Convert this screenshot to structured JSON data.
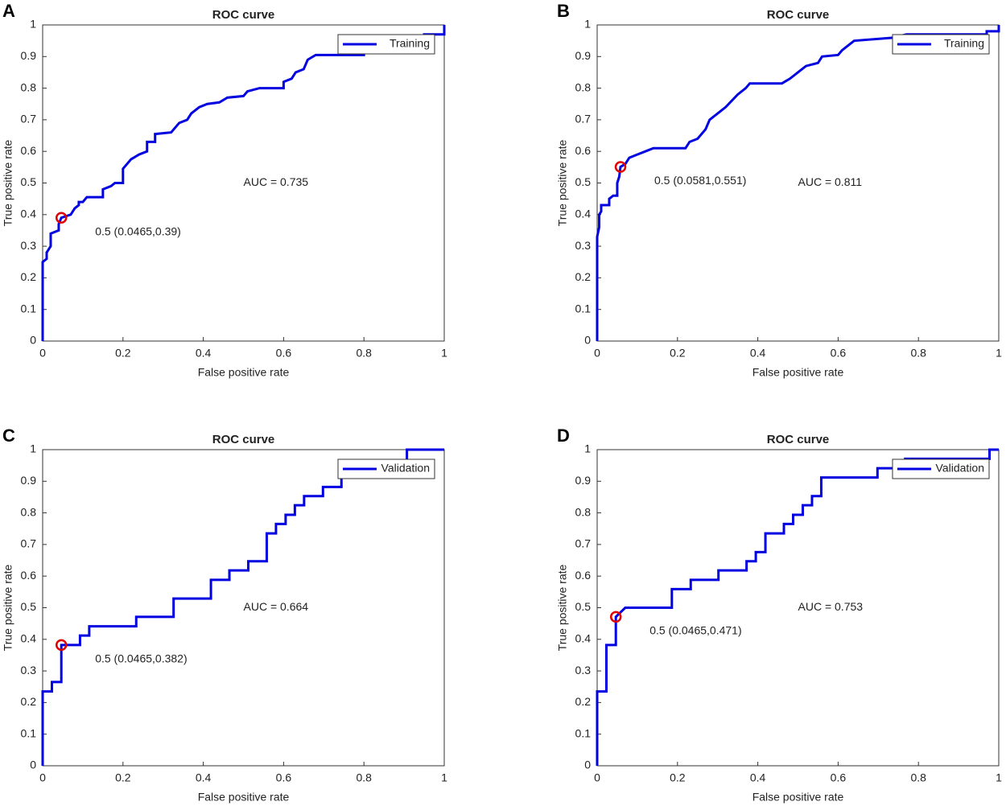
{
  "chart_data": [
    {
      "type": "line",
      "panel": "A",
      "title": "ROC curve",
      "xlabel": "False positive rate",
      "ylabel": "True positive rate",
      "xlim": [
        0,
        1
      ],
      "ylim": [
        0,
        1
      ],
      "xticks": [
        0,
        0.2,
        0.4,
        0.6,
        0.8,
        1
      ],
      "yticks": [
        0,
        0.1,
        0.2,
        0.3,
        0.4,
        0.5,
        0.6,
        0.7,
        0.8,
        0.9,
        1
      ],
      "legend": "upper right",
      "series": [
        {
          "name": "Training",
          "color": "#0000e0",
          "x": [
            0,
            0,
            0.01,
            0.01,
            0.02,
            0.02,
            0.04,
            0.04,
            0.0465,
            0.07,
            0.08,
            0.09,
            0.09,
            0.1,
            0.11,
            0.15,
            0.15,
            0.17,
            0.18,
            0.2,
            0.2,
            0.21,
            0.22,
            0.24,
            0.26,
            0.26,
            0.28,
            0.28,
            0.32,
            0.34,
            0.36,
            0.37,
            0.39,
            0.41,
            0.44,
            0.46,
            0.5,
            0.51,
            0.54,
            0.6,
            0.6,
            0.62,
            0.63,
            0.65,
            0.66,
            0.68,
            0.8,
            0.8,
            0.95,
            0.95,
            1,
            1
          ],
          "values": [
            0,
            0.25,
            0.26,
            0.28,
            0.3,
            0.34,
            0.35,
            0.37,
            0.39,
            0.4,
            0.42,
            0.43,
            0.44,
            0.44,
            0.455,
            0.455,
            0.48,
            0.49,
            0.5,
            0.5,
            0.545,
            0.56,
            0.575,
            0.59,
            0.6,
            0.63,
            0.63,
            0.655,
            0.66,
            0.69,
            0.7,
            0.72,
            0.74,
            0.75,
            0.755,
            0.77,
            0.775,
            0.79,
            0.8,
            0.8,
            0.82,
            0.83,
            0.85,
            0.86,
            0.89,
            0.905,
            0.905,
            0.915,
            0.96,
            0.97,
            0.97,
            1
          ]
        }
      ],
      "operating_point": {
        "x": 0.0465,
        "y": 0.39,
        "color": "#e00000"
      },
      "operating_label": "0.5 (0.0465,0.39)",
      "auc_label": "AUC = 0.735"
    },
    {
      "type": "line",
      "panel": "B",
      "title": "ROC curve",
      "xlabel": "False positive rate",
      "ylabel": "True positive rate",
      "xlim": [
        0,
        1
      ],
      "ylim": [
        0,
        1
      ],
      "xticks": [
        0,
        0.2,
        0.4,
        0.6,
        0.8,
        1
      ],
      "yticks": [
        0,
        0.1,
        0.2,
        0.3,
        0.4,
        0.5,
        0.6,
        0.7,
        0.8,
        0.9,
        1
      ],
      "legend": "upper right",
      "series": [
        {
          "name": "Training",
          "color": "#0000e0",
          "x": [
            0,
            0,
            0.005,
            0.005,
            0.01,
            0.01,
            0.03,
            0.03,
            0.04,
            0.05,
            0.05,
            0.055,
            0.0581,
            0.07,
            0.08,
            0.1,
            0.12,
            0.14,
            0.22,
            0.23,
            0.25,
            0.27,
            0.28,
            0.3,
            0.32,
            0.35,
            0.37,
            0.38,
            0.46,
            0.48,
            0.49,
            0.5,
            0.52,
            0.55,
            0.56,
            0.6,
            0.61,
            0.63,
            0.64,
            0.74,
            0.77,
            0.97,
            0.97,
            1,
            1
          ],
          "values": [
            0,
            0.33,
            0.36,
            0.4,
            0.41,
            0.43,
            0.43,
            0.45,
            0.46,
            0.46,
            0.5,
            0.52,
            0.551,
            0.56,
            0.58,
            0.59,
            0.6,
            0.61,
            0.61,
            0.63,
            0.64,
            0.67,
            0.7,
            0.72,
            0.74,
            0.78,
            0.8,
            0.815,
            0.815,
            0.83,
            0.84,
            0.85,
            0.87,
            0.88,
            0.9,
            0.905,
            0.92,
            0.94,
            0.95,
            0.96,
            0.97,
            0.97,
            0.98,
            0.98,
            1
          ]
        }
      ],
      "operating_point": {
        "x": 0.0581,
        "y": 0.551,
        "color": "#e00000"
      },
      "operating_label": "0.5 (0.0581,0.551)",
      "auc_label": "AUC = 0.811"
    },
    {
      "type": "line",
      "panel": "C",
      "title": "ROC curve",
      "xlabel": "False positive rate",
      "ylabel": "True positive rate",
      "xlim": [
        0,
        1
      ],
      "ylim": [
        0,
        1
      ],
      "xticks": [
        0,
        0.2,
        0.4,
        0.6,
        0.8,
        1
      ],
      "yticks": [
        0,
        0.1,
        0.2,
        0.3,
        0.4,
        0.5,
        0.6,
        0.7,
        0.8,
        0.9,
        1
      ],
      "legend": "upper right",
      "series": [
        {
          "name": "Validation",
          "color": "#0000e0",
          "x": [
            0,
            0,
            0.023,
            0.023,
            0.0465,
            0.0465,
            0.093,
            0.093,
            0.116,
            0.116,
            0.233,
            0.233,
            0.326,
            0.326,
            0.419,
            0.419,
            0.465,
            0.465,
            0.512,
            0.512,
            0.558,
            0.558,
            0.581,
            0.581,
            0.605,
            0.605,
            0.628,
            0.628,
            0.651,
            0.651,
            0.698,
            0.698,
            0.744,
            0.744,
            0.907,
            0.907,
            1
          ],
          "values": [
            0,
            0.235,
            0.235,
            0.265,
            0.265,
            0.382,
            0.382,
            0.412,
            0.412,
            0.441,
            0.441,
            0.471,
            0.471,
            0.529,
            0.529,
            0.588,
            0.588,
            0.618,
            0.618,
            0.647,
            0.647,
            0.735,
            0.735,
            0.765,
            0.765,
            0.794,
            0.794,
            0.824,
            0.824,
            0.853,
            0.853,
            0.882,
            0.882,
            0.912,
            0.912,
            1,
            1
          ]
        }
      ],
      "operating_point": {
        "x": 0.0465,
        "y": 0.382,
        "color": "#e00000"
      },
      "operating_label": "0.5 (0.0465,0.382)",
      "auc_label": "AUC = 0.664"
    },
    {
      "type": "line",
      "panel": "D",
      "title": "ROC curve",
      "xlabel": "False positive rate",
      "ylabel": "True positive rate",
      "xlim": [
        0,
        1
      ],
      "ylim": [
        0,
        1
      ],
      "xticks": [
        0,
        0.2,
        0.4,
        0.6,
        0.8,
        1
      ],
      "yticks": [
        0,
        0.1,
        0.2,
        0.3,
        0.4,
        0.5,
        0.6,
        0.7,
        0.8,
        0.9,
        1
      ],
      "legend": "upper right",
      "series": [
        {
          "name": "Validation",
          "color": "#0000e0",
          "x": [
            0,
            0,
            0.023,
            0.023,
            0.0465,
            0.0465,
            0.07,
            0.186,
            0.186,
            0.233,
            0.233,
            0.302,
            0.302,
            0.372,
            0.372,
            0.395,
            0.395,
            0.419,
            0.419,
            0.465,
            0.465,
            0.488,
            0.488,
            0.512,
            0.512,
            0.535,
            0.535,
            0.558,
            0.558,
            0.698,
            0.698,
            0.767,
            0.767,
            0.977,
            0.977,
            1
          ],
          "values": [
            0,
            0.235,
            0.235,
            0.382,
            0.382,
            0.471,
            0.5,
            0.5,
            0.559,
            0.559,
            0.588,
            0.588,
            0.618,
            0.618,
            0.647,
            0.647,
            0.676,
            0.676,
            0.735,
            0.735,
            0.765,
            0.765,
            0.794,
            0.794,
            0.824,
            0.824,
            0.853,
            0.853,
            0.912,
            0.912,
            0.941,
            0.941,
            0.971,
            0.971,
            1,
            1
          ]
        }
      ],
      "operating_point": {
        "x": 0.0465,
        "y": 0.471,
        "color": "#e00000"
      },
      "operating_label": "0.5 (0.0465,0.471)",
      "auc_label": "AUC = 0.753"
    }
  ]
}
